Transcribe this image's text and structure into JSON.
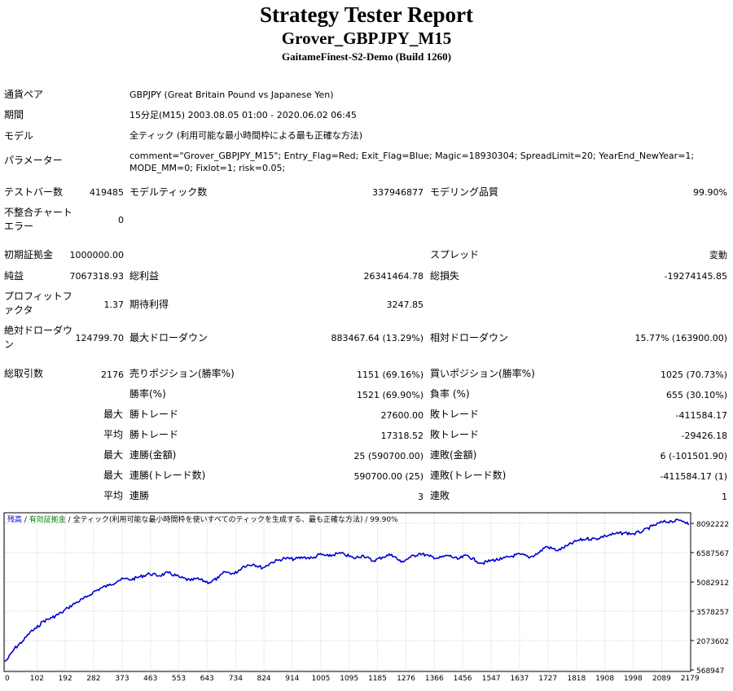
{
  "header": {
    "title": "Strategy Tester Report",
    "expert": "Grover_GBPJPY_M15",
    "server": "GaitameFinest-S2-Demo (Build 1260)"
  },
  "info": {
    "symbol_label": "通貨ペア",
    "symbol_value": "GBPJPY (Great Britain Pound vs Japanese Yen)",
    "period_label": "期間",
    "period_value": "15分足(M15) 2003.08.05 01:00 - 2020.06.02 06:45",
    "model_label": "モデル",
    "model_value": "全ティック (利用可能な最小時間枠による最も正確な方法)",
    "params_label": "パラメーター",
    "params_line1": "comment=\"Grover_GBPJPY_M15\"; Entry_Flag=Red; Exit_Flag=Blue; Magic=18930304; SpreadLimit=20; YearEnd_NewYear=1;",
    "params_line2": "MODE_MM=0; Fixlot=1; risk=0.05;"
  },
  "stats": {
    "bars_label": "テストバー数",
    "bars_value": "419485",
    "ticks_label": "モデルティック数",
    "ticks_value": "337946877",
    "quality_label": "モデリング品質",
    "quality_value": "99.90%",
    "mismatch_label": "不整合チャートエラー",
    "mismatch_value": "0",
    "deposit_label": "初期証拠金",
    "deposit_value": "1000000.00",
    "spread_label": "スプレッド",
    "spread_value": "変動",
    "net_label": "純益",
    "net_value": "7067318.93",
    "gross_profit_label": "総利益",
    "gross_profit_value": "26341464.78",
    "gross_loss_label": "総損失",
    "gross_loss_value": "-19274145.85",
    "pf_label": "プロフィットファクタ",
    "pf_value": "1.37",
    "expected_label": "期待利得",
    "expected_value": "3247.85",
    "abs_dd_label": "絶対ドローダウン",
    "abs_dd_value": "124799.70",
    "max_dd_label": "最大ドローダウン",
    "max_dd_value": "883467.64 (13.29%)",
    "rel_dd_label": "相対ドローダウン",
    "rel_dd_value": "15.77% (163900.00)",
    "total_trades_label": "総取引数",
    "total_trades_value": "2176",
    "short_label": "売りポジション(勝率%)",
    "short_value": "1151 (69.16%)",
    "long_label": "買いポジション(勝率%)",
    "long_value": "1025 (70.73%)",
    "win_pct_label": "勝率(%)",
    "win_pct_value": "1521 (69.90%)",
    "loss_pct_label": "負率 (%)",
    "loss_pct_value": "655 (30.10%)",
    "max_word": "最大",
    "avg_word": "平均",
    "largest_win_label": "勝トレード",
    "largest_win_value": "27600.00",
    "largest_loss_label": "敗トレード",
    "largest_loss_value": "-411584.17",
    "avg_win_label": "勝トレード",
    "avg_win_value": "17318.52",
    "avg_loss_label": "敗トレード",
    "avg_loss_value": "-29426.18",
    "max_consec_wins_label": "連勝(金額)",
    "max_consec_wins_value": "25 (590700.00)",
    "max_consec_losses_label": "連敗(金額)",
    "max_consec_losses_value": "6 (-101501.90)",
    "max_consec_profit_label": "連勝(トレード数)",
    "max_consec_profit_value": "590700.00 (25)",
    "max_consec_loss_label": "連敗(トレード数)",
    "max_consec_loss_value": "-411584.17 (1)",
    "avg_consec_wins_label": "連勝",
    "avg_consec_wins_value": "3",
    "avg_consec_losses_label": "連敗",
    "avg_consec_losses_value": "1"
  },
  "chart_data": {
    "type": "line",
    "legend": {
      "balance": "残高",
      "sep1": " / ",
      "equity": "有効証拠金",
      "sep2": " / ",
      "model": "全ティック(利用可能な最小時間枠を使いすべてのティックを生成する、最も正確な方法)",
      "sep3": " / ",
      "quality": "99.90%"
    },
    "colors": {
      "balance": "#0000CD",
      "equity": "#008000",
      "grid": "#c8c8c8",
      "text": "#000000"
    },
    "grid": true,
    "xlim": [
      0,
      2176
    ],
    "ylim": [
      568947,
      8593777
    ],
    "x_ticks": [
      0,
      102,
      192,
      282,
      373,
      463,
      553,
      643,
      734,
      824,
      914,
      1005,
      1095,
      1185,
      1276,
      1366,
      1456,
      1547,
      1637,
      1727,
      1818,
      1908,
      1998,
      2089,
      2179
    ],
    "y_ticks": [
      8092222,
      6587567,
      5082912,
      3578257,
      2073602,
      568947
    ],
    "series": [
      {
        "name": "残高",
        "x": [
          0,
          10,
          30,
          60,
          80,
          100,
          120,
          150,
          180,
          200,
          230,
          260,
          280,
          310,
          330,
          360,
          380,
          400,
          430,
          460,
          490,
          520,
          560,
          590,
          610,
          650,
          680,
          700,
          730,
          760,
          790,
          820,
          850,
          870,
          890,
          920,
          950,
          980,
          1000,
          1030,
          1060,
          1080,
          1110,
          1140,
          1170,
          1200,
          1230,
          1260,
          1290,
          1320,
          1350,
          1380,
          1410,
          1440,
          1470,
          1500,
          1520,
          1550,
          1580,
          1610,
          1640,
          1670,
          1700,
          1720,
          1760,
          1790,
          1820,
          1850,
          1880,
          1910,
          1940,
          1970,
          2000,
          2030,
          2060,
          2090,
          2120,
          2150,
          2170,
          2176
        ],
        "values": [
          1000000,
          1150000,
          1650000,
          2100000,
          2500000,
          2700000,
          3050000,
          3250000,
          3500000,
          3750000,
          4050000,
          4300000,
          4550000,
          4800000,
          4900000,
          5150000,
          5250000,
          5200000,
          5350000,
          5500000,
          5400000,
          5550000,
          5300000,
          5150000,
          5250000,
          5050000,
          5300000,
          5600000,
          5500000,
          5900000,
          6000000,
          5800000,
          6100000,
          6200000,
          6300000,
          6250000,
          6350000,
          6300000,
          6500000,
          6400000,
          6550000,
          6500000,
          6300000,
          6450000,
          6150000,
          6350000,
          6500000,
          6100000,
          6350000,
          6550000,
          6400000,
          6300000,
          6450000,
          6250000,
          6450000,
          6150000,
          6050000,
          6200000,
          6250000,
          6400000,
          6500000,
          6350000,
          6600000,
          6900000,
          6700000,
          6950000,
          7200000,
          7300000,
          7300000,
          7450000,
          7550000,
          7600000,
          7550000,
          7700000,
          7950000,
          8150000,
          8200000,
          8250000,
          8150000,
          8067318
        ]
      }
    ]
  }
}
